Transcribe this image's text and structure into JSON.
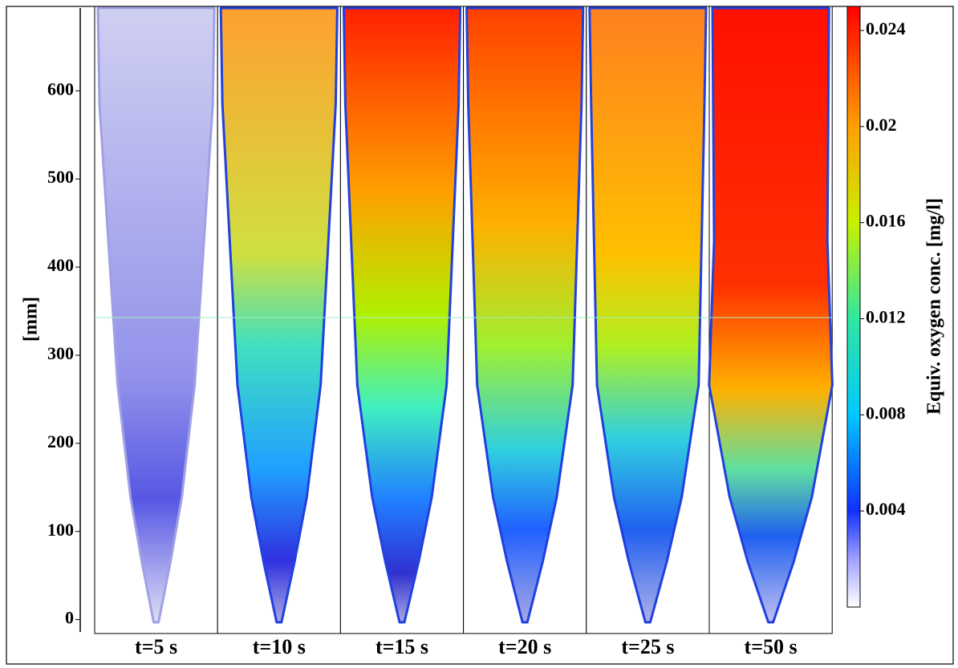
{
  "chart_data": {
    "type": "image",
    "ylabel": "[mm]",
    "ylim": [
      -14,
      694
    ],
    "yticks": [
      0,
      100,
      200,
      300,
      400,
      500,
      600
    ],
    "panels": [
      "t=5 s",
      "t=10 s",
      "t=15 s",
      "t=20 s",
      "t=25 s",
      "t=50 s"
    ],
    "colorbar": {
      "label": "Equiv. oxygen conc. [mg/l]",
      "lim": [
        0,
        0.025
      ],
      "ticks": [
        0.004,
        0.008,
        0.012,
        0.016,
        0.02,
        0.024
      ]
    }
  }
}
